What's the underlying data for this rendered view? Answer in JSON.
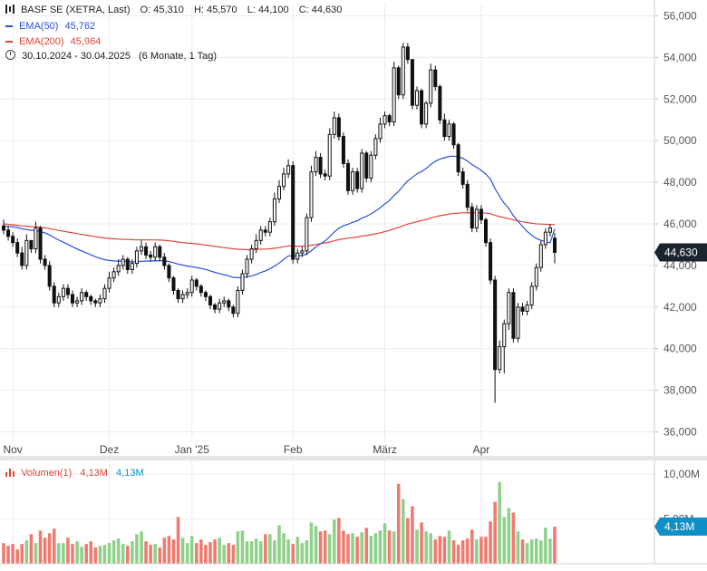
{
  "header": {
    "instrument": "BASF SE (XETRA, Last)",
    "ohlc": {
      "O_label": "O:",
      "O": "45,310",
      "H_label": "H:",
      "H": "45,570",
      "L_label": "L:",
      "L": "44,100",
      "C_label": "C:",
      "C": "44,630"
    },
    "ema50_label": "EMA(50)",
    "ema50_value": "45,762",
    "ema200_label": "EMA(200)",
    "ema200_value": "45,964",
    "range": "30.10.2024 - 30.04.2025",
    "range_detail": "(6 Monate, 1 Tag)"
  },
  "volume_legend": {
    "label": "Volumen(1)",
    "v1": "4,13M",
    "v2": "4,13M"
  },
  "colors": {
    "ema50": "#2b4fd8",
    "ema200": "#e0453a",
    "vol_up": "#8fd08a",
    "vol_down": "#ee7a70",
    "candle": "#111111",
    "price_badge": "#1c2430",
    "vol_badge": "#0e8fc7"
  },
  "chart_data": [
    {
      "type": "candlestick",
      "ylim": [
        35500,
        56500
      ],
      "yticks": [
        "36,000",
        "38,000",
        "40,000",
        "42,000",
        "44,000",
        "46,000",
        "48,000",
        "50,000",
        "52,000",
        "54,000",
        "56,000"
      ],
      "ytick_values": [
        36000,
        38000,
        40000,
        42000,
        44000,
        46000,
        48000,
        50000,
        52000,
        54000,
        56000
      ],
      "xticks": [
        "Nov",
        "Dez",
        "Jan '25",
        "Feb",
        "März",
        "Apr"
      ],
      "xtick_index": [
        2,
        23,
        41,
        63,
        83,
        104
      ],
      "last_price_badge": "44,630",
      "close": [
        45700,
        45400,
        45100,
        44600,
        44000,
        45200,
        44800,
        45800,
        44300,
        44000,
        43000,
        42200,
        42500,
        42900,
        42600,
        42200,
        42300,
        42700,
        42500,
        42300,
        42200,
        42400,
        42900,
        43400,
        43700,
        44000,
        44300,
        43800,
        44100,
        44700,
        44900,
        44500,
        44400,
        44900,
        44400,
        44000,
        43400,
        42800,
        42400,
        42600,
        42700,
        43300,
        43000,
        42700,
        42500,
        42100,
        41900,
        42200,
        42300,
        42000,
        41700,
        42800,
        43600,
        44300,
        44800,
        45200,
        45700,
        45600,
        46100,
        47200,
        47800,
        48400,
        48800,
        44300,
        44600,
        44700,
        46300,
        48500,
        49200,
        48400,
        48300,
        50300,
        51100,
        50200,
        48900,
        47600,
        48500,
        47700,
        49400,
        48200,
        49300,
        50100,
        50800,
        51200,
        50900,
        53500,
        52200,
        54500,
        53900,
        51700,
        52400,
        50800,
        51800,
        53400,
        52600,
        51000,
        50200,
        50800,
        49800,
        48500,
        47900,
        46800,
        45800,
        46700,
        46200,
        45100,
        43300,
        39000,
        40100,
        41200,
        42700,
        40500,
        42000,
        41800,
        42100,
        43000,
        43900,
        45000,
        45600,
        45800,
        44630
      ],
      "open": [
        45900,
        45700,
        45400,
        45100,
        44600,
        44000,
        45200,
        44800,
        45800,
        44300,
        44000,
        43000,
        42200,
        42500,
        42900,
        42600,
        42200,
        42300,
        42700,
        42500,
        42300,
        42200,
        42400,
        42900,
        43400,
        43700,
        44000,
        44300,
        43800,
        44100,
        44700,
        44900,
        44500,
        44400,
        44900,
        44400,
        44000,
        43400,
        42800,
        42400,
        42600,
        42700,
        43300,
        43000,
        42700,
        42500,
        42100,
        41900,
        42200,
        42300,
        42000,
        41700,
        42800,
        43600,
        44300,
        44800,
        45200,
        45700,
        45600,
        46100,
        47200,
        47800,
        48400,
        48800,
        44300,
        44600,
        44700,
        46300,
        48500,
        49200,
        48400,
        48300,
        50300,
        51100,
        50200,
        48900,
        47600,
        48500,
        47700,
        49400,
        48200,
        49300,
        50100,
        50800,
        51200,
        50900,
        53500,
        52200,
        54500,
        53900,
        51700,
        52400,
        50800,
        51800,
        53400,
        52600,
        51000,
        50200,
        50800,
        49800,
        48500,
        47900,
        46800,
        45800,
        46700,
        46200,
        45100,
        43300,
        39000,
        40100,
        41200,
        42700,
        40500,
        42000,
        41800,
        42100,
        43000,
        43900,
        45000,
        45600,
        45310
      ],
      "high": [
        46200,
        45900,
        45600,
        45300,
        44900,
        45500,
        45100,
        46100,
        45900,
        44500,
        44200,
        43200,
        42700,
        43100,
        43100,
        42800,
        42500,
        42900,
        42800,
        42600,
        42400,
        42600,
        43100,
        43700,
        43900,
        44300,
        44500,
        44400,
        44300,
        44900,
        45200,
        45100,
        44700,
        45100,
        45000,
        44600,
        44100,
        43500,
        42900,
        42800,
        42900,
        43500,
        43400,
        43100,
        42800,
        42600,
        42200,
        42400,
        42500,
        42400,
        42100,
        43000,
        43800,
        44500,
        45000,
        45500,
        45900,
        45900,
        46300,
        47500,
        48100,
        48700,
        49100,
        49000,
        44800,
        44900,
        46500,
        48800,
        49500,
        49400,
        48600,
        50600,
        51400,
        51300,
        50400,
        49100,
        48700,
        48700,
        49600,
        49500,
        49500,
        50300,
        51100,
        51400,
        51300,
        53800,
        53600,
        54700,
        54700,
        53900,
        52600,
        52500,
        51900,
        53700,
        53600,
        52700,
        51300,
        51000,
        50900,
        49900,
        48700,
        48100,
        47000,
        46900,
        46900,
        46300,
        45300,
        43500,
        40400,
        41400,
        42900,
        42900,
        42200,
        42200,
        42300,
        43200,
        44100,
        45200,
        45800,
        46000,
        45570
      ],
      "low": [
        45500,
        45200,
        44900,
        44400,
        43800,
        43800,
        44600,
        44600,
        44100,
        43800,
        42800,
        42000,
        42000,
        42300,
        42400,
        42000,
        42000,
        42100,
        42300,
        42100,
        42000,
        42000,
        42200,
        42700,
        43200,
        43500,
        43800,
        43600,
        43600,
        43900,
        44500,
        44300,
        44200,
        44200,
        44200,
        43800,
        43200,
        42600,
        42200,
        42200,
        42400,
        42500,
        42800,
        42500,
        42300,
        41900,
        41700,
        41700,
        42000,
        41800,
        41500,
        41500,
        42600,
        43400,
        44100,
        44600,
        45000,
        45400,
        45400,
        45900,
        47000,
        47600,
        48200,
        44100,
        44100,
        44400,
        44500,
        46100,
        48300,
        48200,
        48100,
        48100,
        50100,
        50000,
        48700,
        47400,
        47400,
        47500,
        47500,
        48000,
        48000,
        49100,
        49900,
        50600,
        50700,
        50700,
        52000,
        52000,
        53700,
        51500,
        51500,
        50600,
        50600,
        51600,
        52400,
        50800,
        50000,
        50000,
        49600,
        48300,
        47700,
        46600,
        45600,
        45600,
        46000,
        44900,
        43100,
        37400,
        38800,
        38800,
        40900,
        40300,
        40300,
        41600,
        41600,
        41900,
        42800,
        43700,
        44800,
        45400,
        44100
      ],
      "ema50": [
        45900,
        45880,
        45860,
        45820,
        45760,
        45730,
        45690,
        45690,
        45630,
        45570,
        45470,
        45340,
        45220,
        45120,
        45010,
        44900,
        44790,
        44700,
        44600,
        44510,
        44420,
        44340,
        44280,
        44240,
        44220,
        44210,
        44210,
        44190,
        44180,
        44180,
        44200,
        44210,
        44210,
        44230,
        44230,
        44220,
        44190,
        44130,
        44070,
        44020,
        43970,
        43940,
        43900,
        43860,
        43810,
        43740,
        43670,
        43610,
        43560,
        43500,
        43430,
        43410,
        43420,
        43450,
        43500,
        43570,
        43660,
        43740,
        43840,
        43970,
        44120,
        44290,
        44460,
        44460,
        44470,
        44480,
        44550,
        44710,
        44890,
        45040,
        45180,
        45380,
        45610,
        45790,
        45910,
        45980,
        46080,
        46140,
        46280,
        46360,
        46480,
        46620,
        46780,
        46960,
        47120,
        47370,
        47560,
        47830,
        48070,
        48230,
        48410,
        48520,
        48660,
        48850,
        49010,
        49110,
        49180,
        49240,
        49260,
        49220,
        49150,
        49020,
        48850,
        48710,
        48570,
        48390,
        48150,
        47700,
        47320,
        46990,
        46740,
        46390,
        46130,
        45870,
        45640,
        45450,
        45300,
        45210,
        45140,
        45090,
        45762
      ],
      "ema200": [
        46000,
        45980,
        45950,
        45930,
        45900,
        45890,
        45860,
        45860,
        45840,
        45810,
        45770,
        45730,
        45680,
        45650,
        45610,
        45570,
        45530,
        45490,
        45460,
        45420,
        45380,
        45350,
        45320,
        45300,
        45280,
        45270,
        45260,
        45250,
        45240,
        45230,
        45230,
        45230,
        45230,
        45230,
        45220,
        45210,
        45190,
        45160,
        45130,
        45100,
        45080,
        45060,
        45040,
        45010,
        44980,
        44950,
        44920,
        44890,
        44860,
        44830,
        44800,
        44780,
        44770,
        44760,
        44760,
        44770,
        44780,
        44790,
        44800,
        44830,
        44860,
        44900,
        44940,
        44930,
        44930,
        44930,
        44940,
        44970,
        45010,
        45050,
        45080,
        45130,
        45190,
        45240,
        45280,
        45310,
        45340,
        45370,
        45410,
        45440,
        45480,
        45520,
        45570,
        45630,
        45680,
        45760,
        45820,
        45910,
        45990,
        46050,
        46110,
        46160,
        46210,
        46280,
        46340,
        46390,
        46430,
        46470,
        46500,
        46520,
        46530,
        46540,
        46530,
        46530,
        46530,
        46520,
        46490,
        46410,
        46350,
        46290,
        46250,
        46190,
        46150,
        46100,
        46060,
        46030,
        46000,
        45990,
        45980,
        45970,
        45964
      ]
    },
    {
      "type": "bar",
      "series_name": "Volumen(1)",
      "ylim": [
        0,
        11500000
      ],
      "yticks": [
        "5,00M",
        "10,00M"
      ],
      "ytick_values": [
        5000000,
        10000000
      ],
      "last_volume_badge": "4,13M",
      "values": [
        2300000,
        2000000,
        2200000,
        1600000,
        2200000,
        2600000,
        3300000,
        2300000,
        3700000,
        2900000,
        3400000,
        3900000,
        2300000,
        2300000,
        2900000,
        2200000,
        2500000,
        1900000,
        2200000,
        2500000,
        1800000,
        2000000,
        2100000,
        2300000,
        2600000,
        2800000,
        2200000,
        2000000,
        2500000,
        3300000,
        3600000,
        2500000,
        2100000,
        2200000,
        1800000,
        2900000,
        3100000,
        2700000,
        5200000,
        2900000,
        2300000,
        3100000,
        2300000,
        2700000,
        2100000,
        2400000,
        2700000,
        2900000,
        2100000,
        2300000,
        2100000,
        3600000,
        3700000,
        2500000,
        2500000,
        2800000,
        2500000,
        3300000,
        3300000,
        2600000,
        4300000,
        3400000,
        2700000,
        2200000,
        3000000,
        2300000,
        2600000,
        4600000,
        4200000,
        3600000,
        3700000,
        3300000,
        4900000,
        5100000,
        3700000,
        3300000,
        3400000,
        3000000,
        3500000,
        4000000,
        3100000,
        3400000,
        3700000,
        4500000,
        3700000,
        3600000,
        8900000,
        7200000,
        5100000,
        6400000,
        3800000,
        4600000,
        3600000,
        3400000,
        2700000,
        3100000,
        3000000,
        3700000,
        2600000,
        2100000,
        2600000,
        2800000,
        3800000,
        2700000,
        3000000,
        3000000,
        4700000,
        6900000,
        9100000,
        5200000,
        6200000,
        5700000,
        3600000,
        2700000,
        2300000,
        2700000,
        2800000,
        2600000,
        4000000,
        2800000,
        4130000
      ]
    }
  ]
}
